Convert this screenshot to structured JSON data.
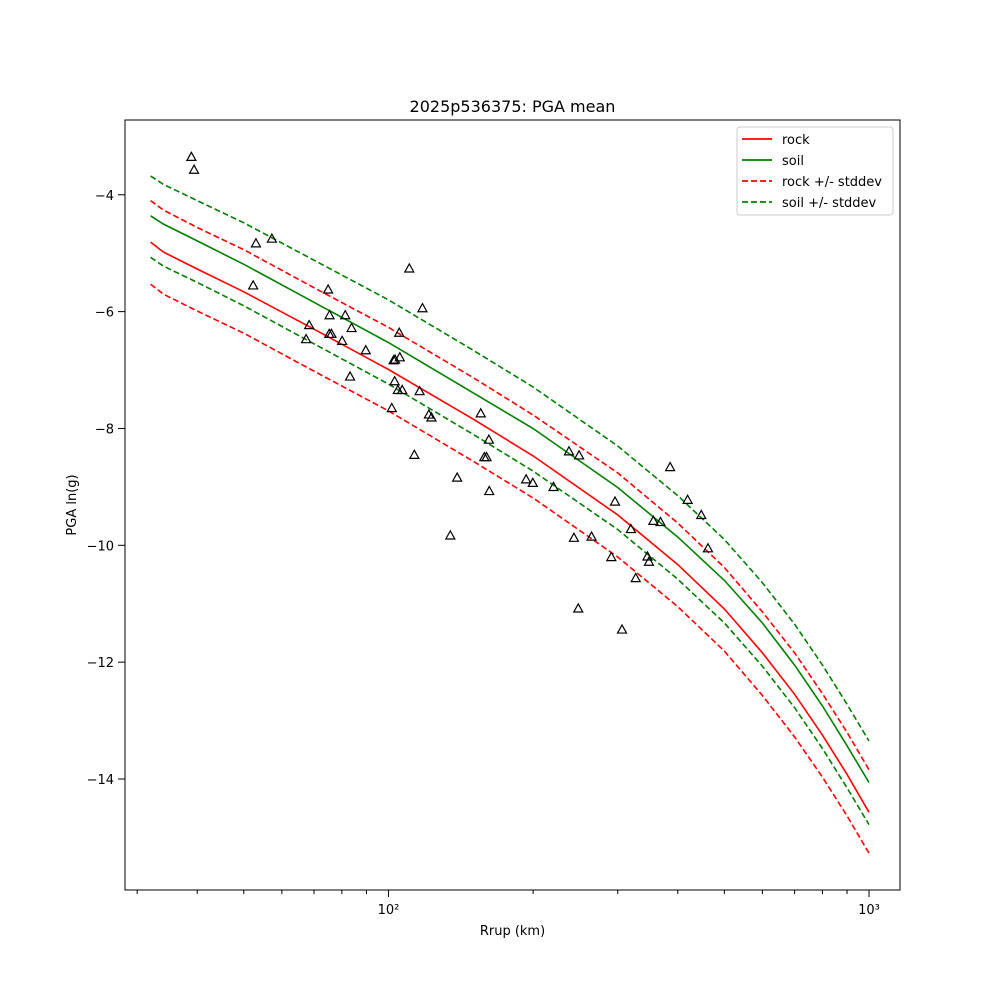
{
  "chart_data": {
    "type": "line",
    "title": "2025p536375: PGA mean",
    "xlabel": "Rrup (km)",
    "ylabel": "PGA ln(g)",
    "x_scale": "log",
    "xlim": [
      28.3,
      1160
    ],
    "ylim": [
      -15.9,
      -2.72
    ],
    "x_ticks": [
      {
        "value": 100,
        "label": "10²"
      },
      {
        "value": 1000,
        "label": "10³"
      }
    ],
    "y_ticks": [
      {
        "value": -4,
        "label": "−4"
      },
      {
        "value": -6,
        "label": "−6"
      },
      {
        "value": -8,
        "label": "−8"
      },
      {
        "value": -10,
        "label": "−10"
      },
      {
        "value": -12,
        "label": "−12"
      },
      {
        "value": -14,
        "label": "−14"
      }
    ],
    "grid": false,
    "legend_position": "top-right",
    "colors": {
      "rock": "#ff0000",
      "soil": "#008000",
      "observed": "#000000"
    },
    "series": [
      {
        "name": "rock",
        "style": "solid",
        "color": "#ff0000",
        "x": [
          32,
          34,
          40,
          50,
          70,
          100,
          150,
          200,
          300,
          400,
          500,
          600,
          700,
          800,
          900,
          1000
        ],
        "y": [
          -4.81,
          -4.98,
          -5.27,
          -5.66,
          -6.3,
          -6.99,
          -7.84,
          -8.47,
          -9.48,
          -10.33,
          -11.09,
          -11.84,
          -12.55,
          -13.25,
          -13.92,
          -14.57
        ]
      },
      {
        "name": "soil",
        "style": "solid",
        "color": "#008000",
        "x": [
          32,
          34,
          40,
          50,
          70,
          100,
          150,
          200,
          300,
          400,
          500,
          600,
          700,
          800,
          900,
          1000
        ],
        "y": [
          -4.36,
          -4.5,
          -4.79,
          -5.19,
          -5.84,
          -6.53,
          -7.39,
          -8.0,
          -9.01,
          -9.86,
          -10.6,
          -11.33,
          -12.05,
          -12.75,
          -13.43,
          -14.06
        ]
      },
      {
        "name": "rock +/- stddev",
        "style": "dashed",
        "color": "#ff0000",
        "x": [
          32,
          34,
          40,
          50,
          70,
          100,
          150,
          200,
          300,
          400,
          500,
          600,
          700,
          800,
          900,
          1000
        ],
        "y": [
          -4.1,
          -4.26,
          -4.56,
          -4.94,
          -5.59,
          -6.27,
          -7.13,
          -7.77,
          -8.76,
          -9.62,
          -10.38,
          -11.14,
          -11.84,
          -12.54,
          -13.2,
          -13.84
        ]
      },
      {
        "name": "rock +/- stddev",
        "style": "dashed",
        "color": "#ff0000",
        "legend": false,
        "x": [
          32,
          34,
          40,
          50,
          70,
          100,
          150,
          200,
          300,
          400,
          500,
          600,
          700,
          800,
          900,
          1000
        ],
        "y": [
          -5.53,
          -5.7,
          -5.99,
          -6.37,
          -7.02,
          -7.7,
          -8.56,
          -9.19,
          -10.2,
          -11.05,
          -11.81,
          -12.57,
          -13.28,
          -13.97,
          -14.63,
          -15.27
        ]
      },
      {
        "name": "soil +/- stddev",
        "style": "dashed",
        "color": "#008000",
        "x": [
          32,
          34,
          40,
          50,
          70,
          100,
          150,
          200,
          300,
          400,
          500,
          600,
          700,
          800,
          900,
          1000
        ],
        "y": [
          -3.68,
          -3.82,
          -4.1,
          -4.48,
          -5.12,
          -5.8,
          -6.66,
          -7.29,
          -8.3,
          -9.15,
          -9.9,
          -10.64,
          -11.35,
          -12.05,
          -12.72,
          -13.35
        ]
      },
      {
        "name": "soil +/- stddev",
        "style": "dashed",
        "color": "#008000",
        "legend": false,
        "x": [
          32,
          34,
          40,
          50,
          70,
          100,
          150,
          200,
          300,
          400,
          500,
          600,
          700,
          800,
          900,
          1000
        ],
        "y": [
          -5.07,
          -5.22,
          -5.5,
          -5.9,
          -6.55,
          -7.24,
          -8.1,
          -8.73,
          -9.73,
          -10.58,
          -11.33,
          -12.07,
          -12.78,
          -13.48,
          -14.15,
          -14.78
        ]
      }
    ],
    "observations": {
      "marker": "triangle",
      "color": "#000000",
      "x": [
        38.9,
        39.4,
        52.3,
        53.0,
        57.2,
        67.4,
        68.4,
        74.9,
        75.3,
        75.4,
        76.1,
        80.1,
        81.3,
        83.2,
        83.8,
        89.7,
        101.6,
        102.5,
        103.0,
        103.2,
        104.6,
        105.3,
        105.6,
        106.8,
        110.5,
        113.2,
        116.1,
        117.7,
        121.4,
        122.9,
        134.5,
        139.0,
        155.6,
        158.3,
        160.0,
        161.8,
        162.1,
        193.4,
        199.7,
        220.5,
        237.5,
        243.2,
        248.3,
        249.3,
        264.6,
        290.9,
        296.1,
        306.2,
        319.5,
        327.0,
        345.9,
        348.4,
        355.8,
        368.2,
        385.6,
        419.3,
        447.7,
        462.2
      ],
      "y": [
        -3.35,
        -3.57,
        -5.55,
        -4.83,
        -4.75,
        -6.47,
        -6.23,
        -5.62,
        -6.38,
        -6.06,
        -6.38,
        -6.5,
        -6.06,
        -7.11,
        -6.28,
        -6.66,
        -7.65,
        -6.83,
        -7.19,
        -6.82,
        -7.34,
        -6.36,
        -6.78,
        -7.34,
        -5.26,
        -8.45,
        -7.36,
        -5.94,
        -7.76,
        -7.81,
        -9.83,
        -8.84,
        -7.74,
        -8.49,
        -8.49,
        -8.19,
        -9.07,
        -8.87,
        -8.93,
        -9.0,
        -8.39,
        -9.87,
        -11.08,
        -8.46,
        -9.85,
        -10.2,
        -9.25,
        -11.44,
        -9.72,
        -10.56,
        -10.19,
        -10.28,
        -9.58,
        -9.6,
        -8.66,
        -9.22,
        -9.48,
        -10.05
      ]
    }
  }
}
